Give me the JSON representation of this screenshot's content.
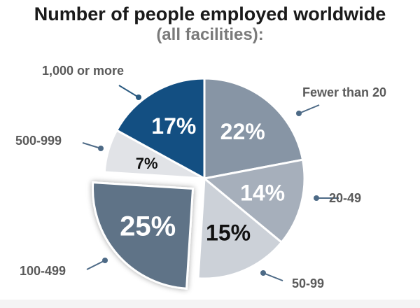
{
  "title": "Number of people employed worldwide",
  "subtitle": "(all facilities):",
  "chart_data": {
    "type": "pie",
    "title": "Number of people employed worldwide",
    "subtitle": "(all facilities):",
    "slices": [
      {
        "label": "Fewer than 20",
        "value": 22,
        "display": "22%",
        "color": "#8795a5",
        "text_color": "#ffffff",
        "exploded": false
      },
      {
        "label": "20-49",
        "value": 14,
        "display": "14%",
        "color": "#a6afbb",
        "text_color": "#ffffff",
        "exploded": false
      },
      {
        "label": "50-99",
        "value": 15,
        "display": "15%",
        "color": "#ccd1d8",
        "text_color": "#111111",
        "exploded": false
      },
      {
        "label": "100-499",
        "value": 25,
        "display": "25%",
        "color": "#5f7387",
        "text_color": "#ffffff",
        "exploded": true
      },
      {
        "label": "500-999",
        "value": 7,
        "display": "7%",
        "color": "#e1e3e7",
        "text_color": "#111111",
        "exploded": false
      },
      {
        "label": "1,000 or more",
        "value": 17,
        "display": "17%",
        "color": "#134f82",
        "text_color": "#ffffff",
        "exploded": false
      }
    ],
    "start_angle": "12 o'clock",
    "direction": "clockwise",
    "legend": "callout labels",
    "label_color": "#5a5a5a",
    "leader_color": "#2a5a80"
  }
}
